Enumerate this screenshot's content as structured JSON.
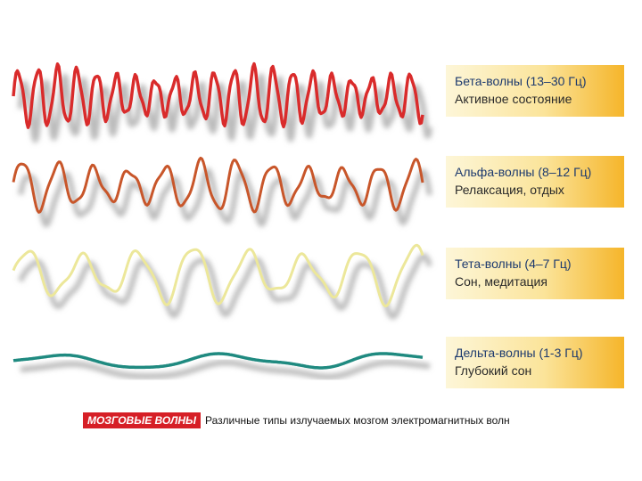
{
  "waves": [
    {
      "title": "Бета-волны (13–30 Гц)",
      "subtitle": "Активное состояние"
    },
    {
      "title": "Альфа-волны (8–12 Гц)",
      "subtitle": "Релаксация, отдых"
    },
    {
      "title": "Тета-волны (4–7 Гц)",
      "subtitle": "Сон, медитация"
    },
    {
      "title": "Дельта-волны (1-3 Гц)",
      "subtitle": "Глубокий сон"
    }
  ],
  "caption": {
    "badge": "МОЗГОВЫЕ ВОЛНЫ",
    "text": "Различные типы излучаемых мозгом электромагнитных волн"
  }
}
